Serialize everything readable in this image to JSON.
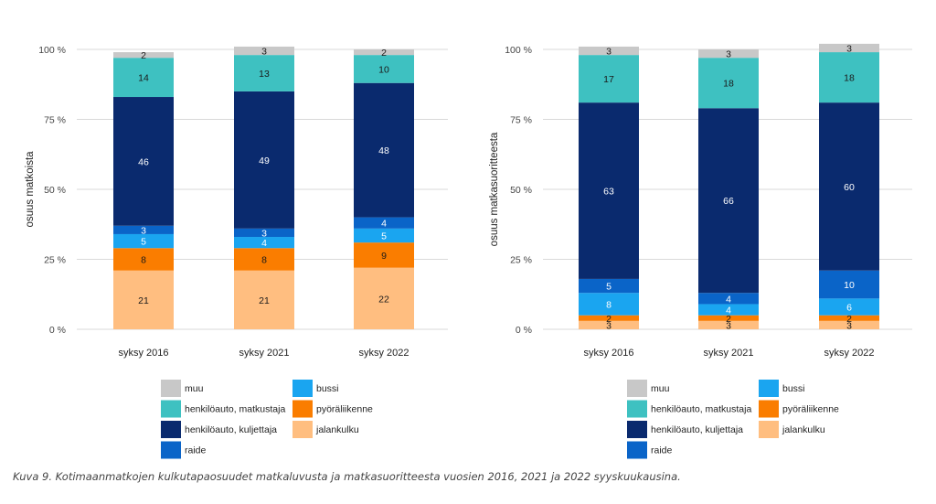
{
  "caption": "Kuva 9. Kotimaanmatkojen kulkutapaosuudet matkaluvusta ja matkasuoritteesta vuosien 2016, 2021 ja 2022 syyskuukausina.",
  "colors": {
    "muu": "#c8c8c8",
    "henkiloauto_matkustaja": "#3ec1c1",
    "henkiloauto_kuljettaja": "#0a2a6e",
    "raide": "#0a64c8",
    "bussi": "#1aa5f0",
    "pyoraliikenne": "#fa7d00",
    "jalankulku": "#ffbe80",
    "grid": "#d9d9d9",
    "axis_text": "#444444"
  },
  "chart_data": [
    {
      "type": "bar",
      "stacked": true,
      "categories": [
        "syksy 2016",
        "syksy 2021",
        "syksy 2022"
      ],
      "ylabel": "osuus matkoista",
      "ylim": [
        0,
        100
      ],
      "yticks": [
        "0 %",
        "25 %",
        "50 %",
        "75 %",
        "100 %"
      ],
      "ytick_values": [
        0,
        25,
        50,
        75,
        100
      ],
      "series": [
        {
          "name": "jalankulku",
          "key": "jalankulku",
          "values": [
            21,
            21,
            22
          ]
        },
        {
          "name": "pyöräliikenne",
          "key": "pyoraliikenne",
          "values": [
            8,
            8,
            9
          ]
        },
        {
          "name": "bussi",
          "key": "bussi",
          "values": [
            5,
            4,
            5
          ]
        },
        {
          "name": "raide",
          "key": "raide",
          "values": [
            3,
            3,
            4
          ]
        },
        {
          "name": "henkilöauto, kuljettaja",
          "key": "henkiloauto_kuljettaja",
          "values": [
            46,
            49,
            48
          ]
        },
        {
          "name": "henkilöauto, matkustaja",
          "key": "henkiloauto_matkustaja",
          "values": [
            14,
            13,
            10
          ]
        },
        {
          "name": "muu",
          "key": "muu",
          "values": [
            2,
            3,
            2
          ]
        }
      ],
      "legend_placement": "bottom"
    },
    {
      "type": "bar",
      "stacked": true,
      "categories": [
        "syksy 2016",
        "syksy 2021",
        "syksy 2022"
      ],
      "ylabel": "osuus matkasuoritteesta",
      "ylim": [
        0,
        100
      ],
      "yticks": [
        "0 %",
        "25 %",
        "50 %",
        "75 %",
        "100 %"
      ],
      "ytick_values": [
        0,
        25,
        50,
        75,
        100
      ],
      "series": [
        {
          "name": "jalankulku",
          "key": "jalankulku",
          "values": [
            3,
            3,
            3
          ]
        },
        {
          "name": "pyöräliikenne",
          "key": "pyoraliikenne",
          "values": [
            2,
            2,
            2
          ]
        },
        {
          "name": "bussi",
          "key": "bussi",
          "values": [
            8,
            4,
            6
          ]
        },
        {
          "name": "raide",
          "key": "raide",
          "values": [
            5,
            4,
            10
          ]
        },
        {
          "name": "henkilöauto, kuljettaja",
          "key": "henkiloauto_kuljettaja",
          "values": [
            63,
            66,
            60
          ]
        },
        {
          "name": "henkilöauto, matkustaja",
          "key": "henkiloauto_matkustaja",
          "values": [
            17,
            18,
            18
          ]
        },
        {
          "name": "muu",
          "key": "muu",
          "values": [
            3,
            3,
            3
          ]
        }
      ],
      "legend_placement": "bottom"
    }
  ],
  "legend": [
    {
      "label": "muu",
      "key": "muu"
    },
    {
      "label": "henkilöauto, matkustaja",
      "key": "henkiloauto_matkustaja"
    },
    {
      "label": "henkilöauto, kuljettaja",
      "key": "henkiloauto_kuljettaja"
    },
    {
      "label": "raide",
      "key": "raide"
    },
    {
      "label": "bussi",
      "key": "bussi"
    },
    {
      "label": "pyöräliikenne",
      "key": "pyoraliikenne"
    },
    {
      "label": "jalankulku",
      "key": "jalankulku"
    }
  ]
}
